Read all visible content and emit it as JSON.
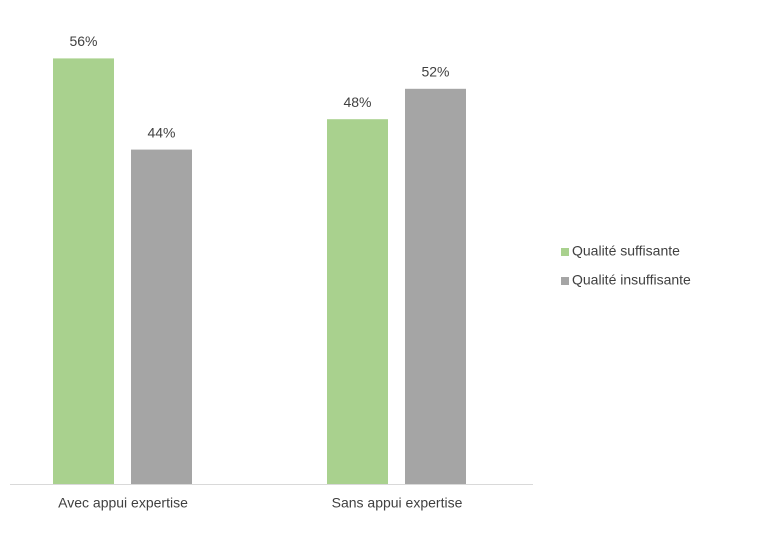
{
  "chart_data": {
    "type": "bar",
    "categories": [
      "Avec appui expertise",
      "Sans appui expertise"
    ],
    "series": [
      {
        "name": "Qualité suffisante",
        "color": "#a9d18e",
        "values": [
          56,
          48
        ],
        "value_labels": [
          "56%",
          "48%"
        ]
      },
      {
        "name": "Qualité insuffisante",
        "color": "#a5a5a5",
        "values": [
          44,
          52
        ],
        "value_labels": [
          "44%",
          "52%"
        ]
      }
    ],
    "legend": "right"
  }
}
